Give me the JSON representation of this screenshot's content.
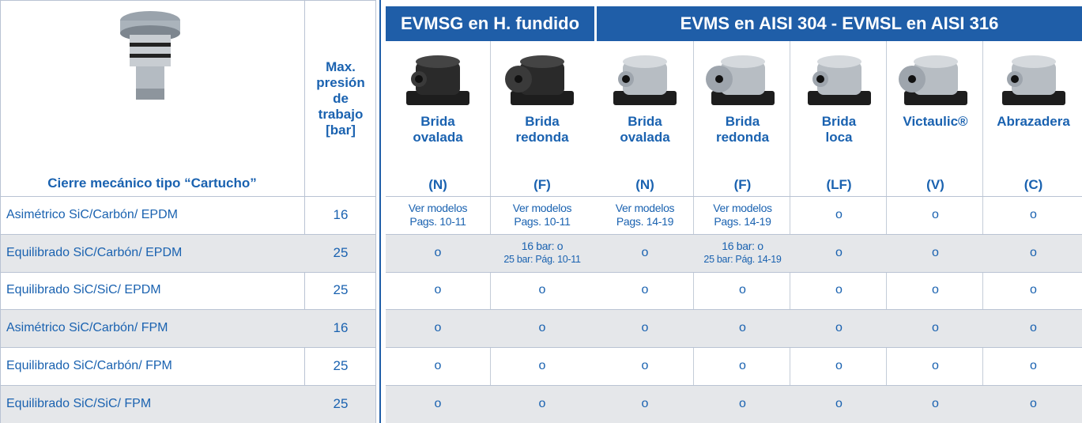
{
  "table": {
    "group_headers": [
      "EVMSG en H. fundido",
      "EVMS en AISI 304 - EVMSL en AISI 316"
    ],
    "seal_header": "Cierre mecánico tipo “Cartucho”",
    "pressure_header": "Max. presión de trabajo [bar]",
    "columns": [
      {
        "name": [
          "Brida",
          "ovalada"
        ],
        "code": "(N)"
      },
      {
        "name": [
          "Brida",
          "redonda"
        ],
        "code": "(F)"
      },
      {
        "name": [
          "Brida",
          "ovalada"
        ],
        "code": "(N)"
      },
      {
        "name": [
          "Brida",
          "redonda"
        ],
        "code": "(F)"
      },
      {
        "name": [
          "Brida",
          "loca"
        ],
        "code": "(LF)"
      },
      {
        "name": [
          "Victaulic®"
        ],
        "code": "(V)"
      },
      {
        "name": [
          "Abrazadera"
        ],
        "code": "(C)"
      }
    ],
    "rows": [
      {
        "seal": "Asimétrico SiC/Carbón/ EPDM",
        "pressure": 16,
        "cells": [
          [
            "Ver modelos",
            "Pags. 10-11"
          ],
          [
            "Ver modelos",
            "Pags. 10-11"
          ],
          [
            "Ver modelos",
            "Pags. 14-19"
          ],
          [
            "Ver modelos",
            "Pags. 14-19"
          ],
          "o",
          "o",
          "o"
        ]
      },
      {
        "seal": "Equilibrado SiC/Carbón/ EPDM",
        "pressure": 25,
        "cells": [
          "o",
          [
            "16 bar: o",
            "25 bar: Pág. 10-11"
          ],
          "o",
          [
            "16 bar: o",
            "25 bar: Pág. 14-19"
          ],
          "o",
          "o",
          "o"
        ]
      },
      {
        "seal": "Equilibrado SiC/SiC/ EPDM",
        "pressure": 25,
        "cells": [
          "o",
          "o",
          "o",
          "o",
          "o",
          "o",
          "o"
        ]
      },
      {
        "seal": "Asimétrico SiC/Carbón/ FPM",
        "pressure": 16,
        "cells": [
          "o",
          "o",
          "o",
          "o",
          "o",
          "o",
          "o"
        ]
      },
      {
        "seal": "Equilibrado SiC/Carbón/ FPM",
        "pressure": 25,
        "cells": [
          "o",
          "o",
          "o",
          "o",
          "o",
          "o",
          "o"
        ]
      },
      {
        "seal": "Equilibrado SiC/SiC/ FPM",
        "pressure": 25,
        "cells": [
          "o",
          "o",
          "o",
          "o",
          "o",
          "o",
          "o"
        ]
      }
    ]
  }
}
